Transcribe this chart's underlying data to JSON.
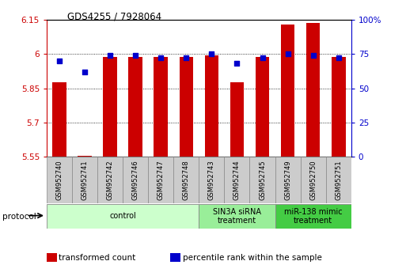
{
  "title": "GDS4255 / 7928064",
  "samples": [
    "GSM952740",
    "GSM952741",
    "GSM952742",
    "GSM952746",
    "GSM952747",
    "GSM952748",
    "GSM952743",
    "GSM952744",
    "GSM952745",
    "GSM952749",
    "GSM952750",
    "GSM952751"
  ],
  "transformed_count": [
    5.875,
    5.555,
    5.985,
    5.985,
    5.985,
    5.985,
    5.995,
    5.875,
    5.985,
    6.13,
    6.135,
    5.985
  ],
  "percentile_rank": [
    70,
    62,
    74,
    74,
    72,
    72,
    75,
    68,
    72,
    75,
    74,
    72
  ],
  "ylim_left": [
    5.55,
    6.15
  ],
  "ylim_right": [
    0,
    100
  ],
  "yticks_left": [
    5.55,
    5.7,
    5.85,
    6.0,
    6.15
  ],
  "ytick_labels_left": [
    "5.55",
    "5.7",
    "5.85",
    "6",
    "6.15"
  ],
  "yticks_right": [
    0,
    25,
    50,
    75,
    100
  ],
  "ytick_labels_right": [
    "0",
    "25",
    "50",
    "75",
    "100%"
  ],
  "bar_color": "#cc0000",
  "marker_color": "#0000cc",
  "baseline": 5.55,
  "groups": [
    {
      "label": "control",
      "start": 0,
      "end": 6,
      "color": "#ccffcc"
    },
    {
      "label": "SIN3A siRNA\ntreatment",
      "start": 6,
      "end": 9,
      "color": "#99ee99"
    },
    {
      "label": "miR-138 mimic\ntreatment",
      "start": 9,
      "end": 12,
      "color": "#44cc44"
    }
  ],
  "protocol_label": "protocol",
  "legend": [
    {
      "label": "transformed count",
      "color": "#cc0000"
    },
    {
      "label": "percentile rank within the sample",
      "color": "#0000cc"
    }
  ],
  "bar_width": 0.55,
  "figsize": [
    5.13,
    3.54
  ],
  "dpi": 100
}
